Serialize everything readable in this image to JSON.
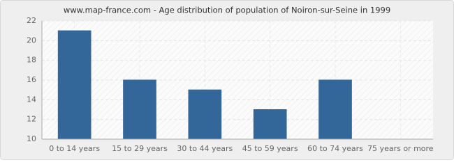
{
  "chart_data": {
    "type": "bar",
    "title": "www.map-france.com - Age distribution of population of Noiron-sur-Seine in 1999",
    "categories": [
      "0 to 14 years",
      "15 to 29 years",
      "30 to 44 years",
      "45 to 59 years",
      "60 to 74 years",
      "75 years or more"
    ],
    "values": [
      21,
      16,
      15,
      13,
      16,
      10
    ],
    "color": "#336699",
    "ylim": [
      10,
      22
    ],
    "yticks": [
      10,
      12,
      14,
      16,
      18,
      20,
      22
    ],
    "grid": true
  }
}
